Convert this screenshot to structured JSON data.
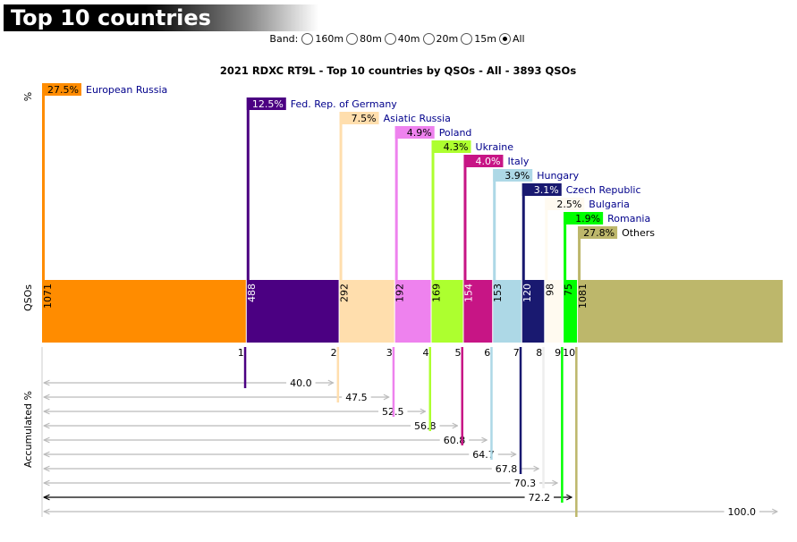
{
  "header": {
    "title": "Top 10 countries"
  },
  "band": {
    "label": "Band:",
    "options": [
      {
        "label": "160m",
        "checked": false
      },
      {
        "label": "80m",
        "checked": false
      },
      {
        "label": "40m",
        "checked": false
      },
      {
        "label": "20m",
        "checked": false
      },
      {
        "label": "15m",
        "checked": false
      },
      {
        "label": "All",
        "checked": true
      }
    ]
  },
  "chart_data": {
    "type": "bar",
    "title": "2021 RDXC RT9L - Top 10 countries by QSOs - All - 3893 QSOs",
    "ylabel_top": "%",
    "ylabel_mid": "QSOs",
    "ylabel_bottom": "Accumulated %",
    "total": 3893,
    "categories": [
      {
        "rank": "1",
        "name": "European Russia",
        "qsos": 1071,
        "pct": "27.5%",
        "accum": "40.0",
        "color": "#ff8c00"
      },
      {
        "rank": "2",
        "name": "Fed. Rep. of Germany",
        "qsos": 488,
        "pct": "12.5%",
        "accum": "47.5",
        "color": "#4b0082"
      },
      {
        "rank": "3",
        "name": "Asiatic Russia",
        "qsos": 292,
        "pct": "7.5%",
        "accum": "52.5",
        "color": "#ffdead"
      },
      {
        "rank": "4",
        "name": "Poland",
        "qsos": 192,
        "pct": "4.9%",
        "accum": "56.8",
        "color": "#ee82ee"
      },
      {
        "rank": "5",
        "name": "Ukraine",
        "qsos": 169,
        "pct": "4.3%",
        "accum": "60.8",
        "color": "#adff2f"
      },
      {
        "rank": "6",
        "name": "Italy",
        "qsos": 154,
        "pct": "4.0%",
        "accum": "64.7",
        "color": "#c71585"
      },
      {
        "rank": "7",
        "name": "Hungary",
        "qsos": 153,
        "pct": "3.9%",
        "accum": "67.8",
        "color": "#add8e6"
      },
      {
        "rank": "8",
        "name": "Czech Republic",
        "qsos": 120,
        "pct": "3.1%",
        "accum": "70.3",
        "color": "#191970"
      },
      {
        "rank": "9",
        "name": "Bulgaria",
        "qsos": 98,
        "pct": "2.5%",
        "accum": "72.2",
        "color": "#fffaf0"
      },
      {
        "rank": "10",
        "name": "Romania",
        "qsos": 75,
        "pct": "1.9%",
        "accum": "100.0",
        "color": "#00ff00"
      }
    ],
    "others": {
      "name": "Others",
      "qsos": 1081,
      "pct": "27.8%",
      "color": "#bdb76b"
    }
  }
}
